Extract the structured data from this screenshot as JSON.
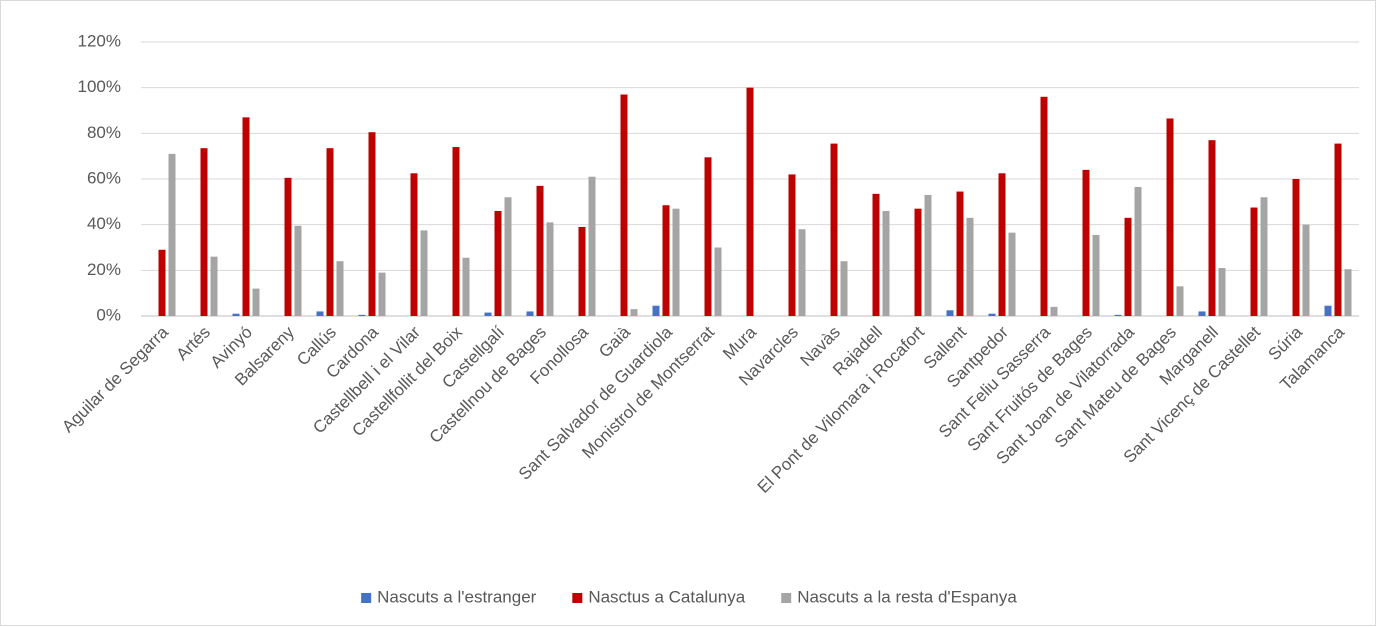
{
  "chart_data": {
    "type": "bar",
    "categories": [
      "Aguilar de Segarra",
      "Artés",
      "Avinyó",
      "Balsareny",
      "Callús",
      "Cardona",
      "Castellbell i el Vilar",
      "Castellfollit del Boix",
      "Castellgalí",
      "Castellnou de Bages",
      "Fonollosa",
      "Gaià",
      "Sant Salvador de Guardiola",
      "Monistrol de Montserrat",
      "Mura",
      "Navarcles",
      "Navàs",
      "Rajadell",
      "El Pont de Vilomara i Rocafort",
      "Sallent",
      "Santpedor",
      "Sant Feliu Sasserra",
      "Sant Fruitós de Bages",
      "Sant Joan de Vilatorrada",
      "Sant Mateu de Bages",
      "Marganell",
      "Sant Vicenç de Castellet",
      "Súria",
      "Talamanca"
    ],
    "series": [
      {
        "name": "Nascuts a l'estranger",
        "color": "#4472c4",
        "values": [
          0,
          0,
          1,
          0,
          2,
          0.5,
          0,
          0,
          1.5,
          2,
          0,
          0,
          4.5,
          0,
          0,
          0,
          0,
          0,
          0,
          2.5,
          1,
          0,
          0,
          0.5,
          0,
          2,
          0,
          0,
          4.5
        ]
      },
      {
        "name": "Nasctus a Catalunya",
        "color": "#c00000",
        "values": [
          29,
          73.5,
          87,
          60.5,
          73.5,
          80.5,
          62.5,
          74,
          46,
          57,
          39,
          97,
          48.5,
          69.5,
          100,
          62,
          75.5,
          53.5,
          47,
          54.5,
          62.5,
          96,
          64,
          43,
          86.5,
          77,
          47.5,
          60,
          75.5
        ]
      },
      {
        "name": "Nascuts a la resta d'Espanya",
        "color": "#a5a5a5",
        "values": [
          71,
          26,
          12,
          39.5,
          24,
          19,
          37.5,
          25.5,
          52,
          41,
          61,
          3,
          47,
          30,
          0,
          38,
          24,
          46,
          53,
          43,
          36.5,
          4,
          35.5,
          56.5,
          13,
          21,
          52,
          40,
          20.5
        ]
      }
    ],
    "ylim": [
      0,
      120
    ],
    "yticks": [
      {
        "value": 0,
        "label": "0%"
      },
      {
        "value": 20,
        "label": "20%"
      },
      {
        "value": 40,
        "label": "40%"
      },
      {
        "value": 60,
        "label": "60%"
      },
      {
        "value": 80,
        "label": "80%"
      },
      {
        "value": 100,
        "label": "100%"
      },
      {
        "value": 120,
        "label": "120%"
      }
    ],
    "grid": true,
    "legend": "bottom"
  }
}
